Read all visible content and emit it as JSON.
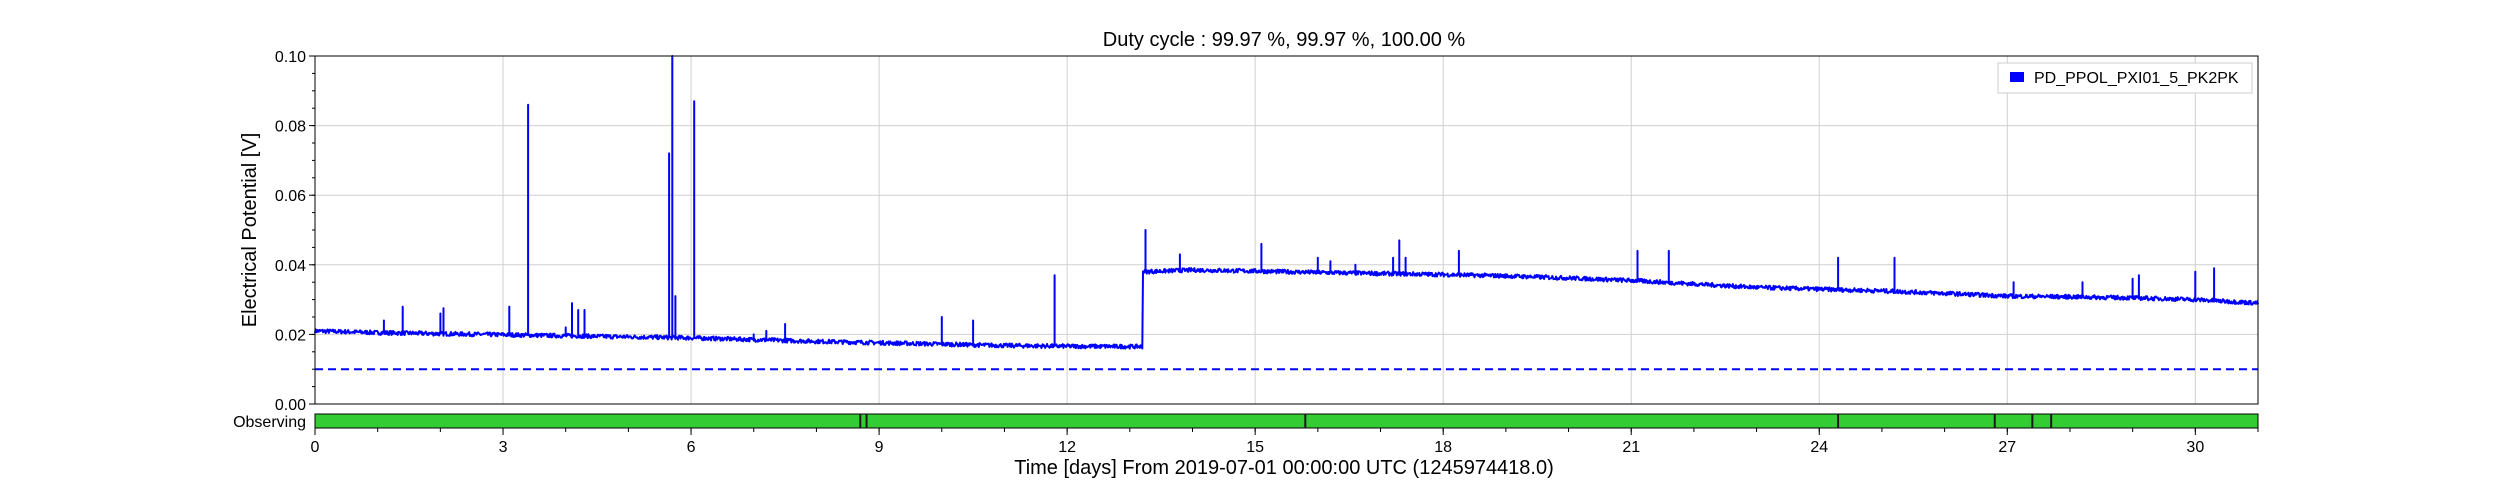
{
  "chart_data": {
    "type": "line",
    "title": "Duty cycle : 99.97 %, 99.97 %, 100.00 %",
    "xlabel": "Time [days] From 2019-07-01 00:00:00 UTC (1245974418.0)",
    "ylabel": "Electrical Potential [V]",
    "xlim": [
      0,
      31
    ],
    "ylim": [
      0,
      0.1
    ],
    "x_ticks": [
      0,
      3,
      6,
      9,
      12,
      15,
      18,
      21,
      24,
      27,
      30
    ],
    "x_tick_labels": [
      "0",
      "3",
      "6",
      "9",
      "12",
      "15",
      "18",
      "21",
      "24",
      "27",
      "30"
    ],
    "y_ticks": [
      0,
      0.02,
      0.04,
      0.06,
      0.08,
      0.1
    ],
    "y_tick_labels": [
      "0.00",
      "0.02",
      "0.04",
      "0.06",
      "0.08",
      "0.10"
    ],
    "grid": true,
    "legend_position": "top-right",
    "series": [
      {
        "name": "PD_PPOL_PXI01_5_PK2PK",
        "color": "#0000ff",
        "baseline": [
          [
            0,
            0.021
          ],
          [
            1,
            0.0205
          ],
          [
            2,
            0.0202
          ],
          [
            3,
            0.0199
          ],
          [
            4,
            0.0196
          ],
          [
            5,
            0.0193
          ],
          [
            6,
            0.019
          ],
          [
            7,
            0.0185
          ],
          [
            8,
            0.018
          ],
          [
            9,
            0.0176
          ],
          [
            10,
            0.0172
          ],
          [
            11,
            0.0168
          ],
          [
            12,
            0.0166
          ],
          [
            13.2,
            0.0165
          ],
          [
            13.21,
            0.038
          ],
          [
            14,
            0.0385
          ],
          [
            15,
            0.0382
          ],
          [
            16,
            0.0378
          ],
          [
            17,
            0.0375
          ],
          [
            18,
            0.0372
          ],
          [
            19,
            0.0368
          ],
          [
            20,
            0.0362
          ],
          [
            21,
            0.0355
          ],
          [
            22,
            0.0345
          ],
          [
            23,
            0.0335
          ],
          [
            24,
            0.033
          ],
          [
            25,
            0.0325
          ],
          [
            26,
            0.0318
          ],
          [
            27,
            0.031
          ],
          [
            28,
            0.0308
          ],
          [
            29,
            0.0305
          ],
          [
            30,
            0.03
          ],
          [
            31,
            0.029
          ]
        ],
        "spikes": [
          [
            1.1,
            0.024
          ],
          [
            1.4,
            0.028
          ],
          [
            2.0,
            0.026
          ],
          [
            2.05,
            0.0275
          ],
          [
            3.1,
            0.028
          ],
          [
            3.4,
            0.086
          ],
          [
            4.0,
            0.022
          ],
          [
            4.1,
            0.029
          ],
          [
            4.2,
            0.027
          ],
          [
            4.3,
            0.027
          ],
          [
            5.65,
            0.072
          ],
          [
            5.7,
            0.1
          ],
          [
            5.75,
            0.031
          ],
          [
            6.05,
            0.087
          ],
          [
            7.0,
            0.02
          ],
          [
            7.2,
            0.021
          ],
          [
            7.5,
            0.023
          ],
          [
            10.0,
            0.025
          ],
          [
            10.5,
            0.024
          ],
          [
            11.8,
            0.037
          ],
          [
            13.25,
            0.05
          ],
          [
            13.8,
            0.043
          ],
          [
            15.1,
            0.046
          ],
          [
            16.0,
            0.042
          ],
          [
            16.2,
            0.041
          ],
          [
            16.6,
            0.04
          ],
          [
            17.2,
            0.042
          ],
          [
            17.3,
            0.047
          ],
          [
            17.4,
            0.042
          ],
          [
            18.25,
            0.044
          ],
          [
            21.1,
            0.044
          ],
          [
            21.6,
            0.044
          ],
          [
            24.3,
            0.042
          ],
          [
            25.2,
            0.042
          ],
          [
            27.1,
            0.035
          ],
          [
            28.2,
            0.035
          ],
          [
            29.0,
            0.036
          ],
          [
            29.1,
            0.037
          ],
          [
            30.0,
            0.038
          ],
          [
            30.3,
            0.039
          ]
        ],
        "noise": 0.0006
      }
    ],
    "threshold": {
      "y": 0.01,
      "color": "#0000ff",
      "style": "dashed"
    },
    "state_bar": {
      "label": "Observing",
      "color": "#33cc33",
      "gaps": [
        8.7,
        8.8,
        15.8,
        24.3,
        26.8,
        27.4,
        27.7
      ]
    }
  }
}
